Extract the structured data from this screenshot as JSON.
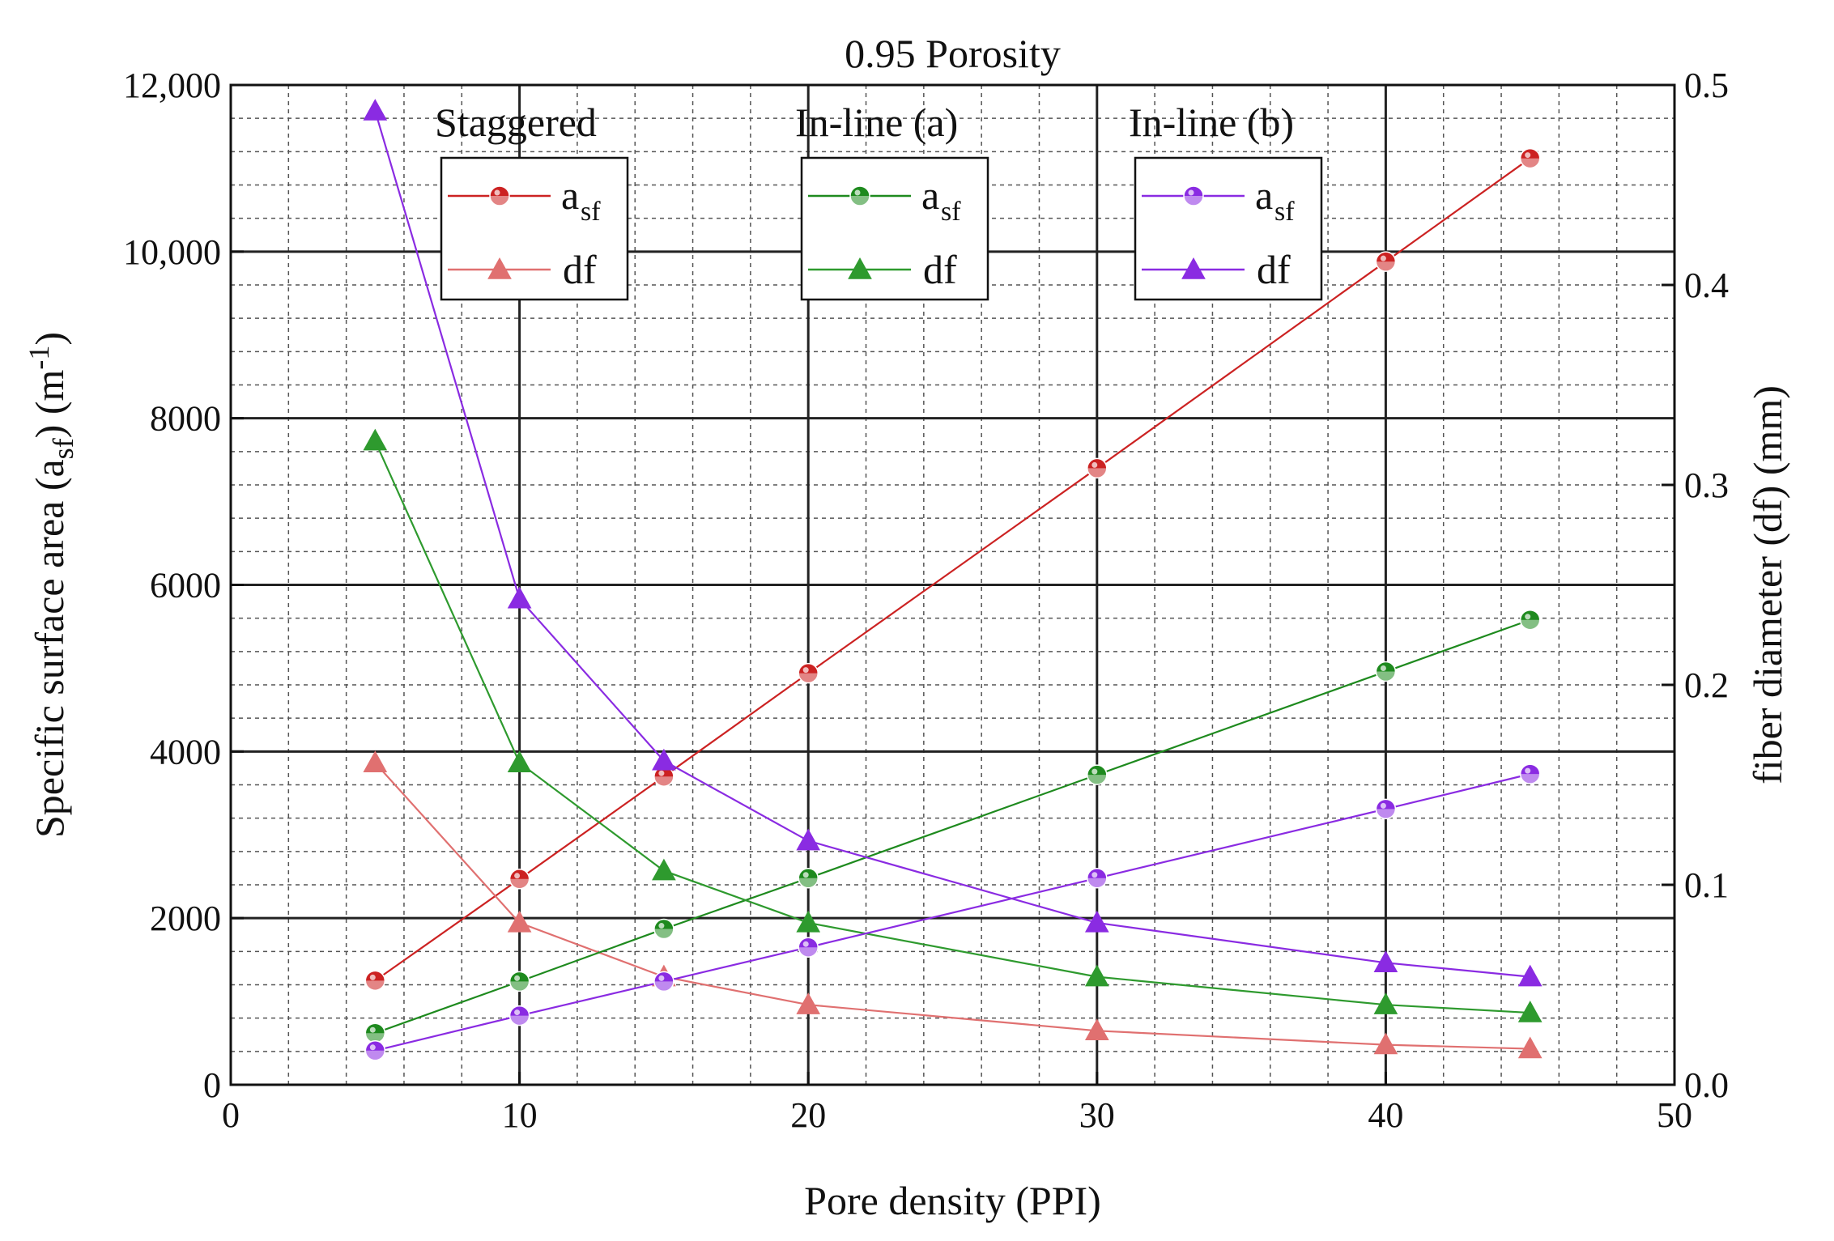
{
  "chart_data": {
    "type": "line",
    "title": "0.95 Porosity",
    "xlabel": "Pore density (PPI)",
    "ylabel_left": "Specific surface area (a",
    "ylabel_left_sub": "sf",
    "ylabel_left_tail": ") (m",
    "ylabel_left_sup": "-1",
    "ylabel_left_end": ")",
    "ylabel_right": "fiber diameter (df) (mm)",
    "xlim": [
      0,
      50
    ],
    "ylim_left": [
      0,
      12000
    ],
    "ylim_right": [
      0,
      0.5
    ],
    "x_ticks": [
      0,
      10,
      20,
      30,
      40,
      50
    ],
    "x_tick_labels": [
      "0",
      "10",
      "20",
      "30",
      "40",
      "50"
    ],
    "y_left_ticks": [
      0,
      2000,
      4000,
      6000,
      8000,
      10000,
      12000
    ],
    "y_left_tick_labels": [
      "0",
      "2000",
      "4000",
      "6000",
      "8000",
      "10,000",
      "12,000"
    ],
    "y_right_ticks": [
      0,
      0.1,
      0.2,
      0.3,
      0.4,
      0.5
    ],
    "y_right_tick_labels": [
      "0.0",
      "0.1",
      "0.2",
      "0.3",
      "0.4",
      "0.5"
    ],
    "x": [
      5,
      10,
      15,
      20,
      30,
      40,
      45
    ],
    "groups": [
      {
        "title": "Staggered",
        "color": "#cc2222",
        "df_color": "#e07070",
        "legend_asf_label": "a",
        "legend_asf_sub": "sf",
        "legend_df_label": "df",
        "asf": [
          1250,
          2470,
          3700,
          4940,
          7400,
          9880,
          11120
        ],
        "df": [
          0.161,
          0.081,
          0.054,
          0.04,
          0.027,
          0.02,
          0.018
        ]
      },
      {
        "title": "In-line (a)",
        "color": "#1e8a1e",
        "df_color": "#2e9a2e",
        "legend_asf_label": "a",
        "legend_asf_sub": "sf",
        "legend_df_label": "df",
        "asf": [
          620,
          1240,
          1870,
          2480,
          3720,
          4960,
          5580
        ],
        "df": [
          0.322,
          0.161,
          0.107,
          0.081,
          0.054,
          0.04,
          0.036
        ]
      },
      {
        "title": "In-line (b)",
        "color": "#8a2be2",
        "df_color": "#8a2be2",
        "legend_asf_label": "a",
        "legend_asf_sub": "sf",
        "legend_df_label": "df",
        "asf": [
          410,
          830,
          1240,
          1650,
          2480,
          3310,
          3730
        ],
        "df": [
          0.487,
          0.243,
          0.162,
          0.122,
          0.081,
          0.061,
          0.054
        ]
      }
    ]
  }
}
